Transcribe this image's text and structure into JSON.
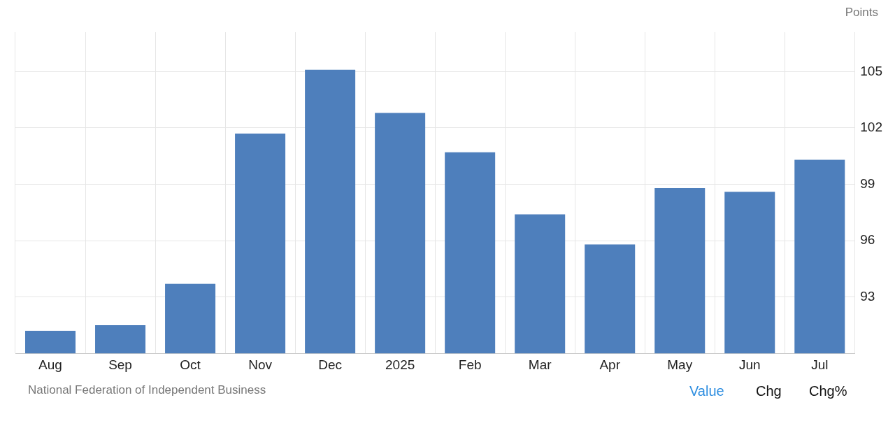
{
  "chart_data": {
    "type": "bar",
    "ylabel": "Points",
    "categories": [
      "Aug",
      "Sep",
      "Oct",
      "Nov",
      "Dec",
      "2025",
      "Feb",
      "Mar",
      "Apr",
      "May",
      "Jun",
      "Jul"
    ],
    "values": [
      91.2,
      91.5,
      93.7,
      101.7,
      105.1,
      102.8,
      100.7,
      97.4,
      95.8,
      98.8,
      98.6,
      100.3
    ],
    "color": "#4e7fbc",
    "ylim": [
      90,
      107.1
    ],
    "yticks": [
      93,
      96,
      99,
      102,
      105
    ],
    "grid": true,
    "legend": false,
    "annotations": [
      "National Federation of Independent Business",
      "Value",
      "Chg",
      "Chg%"
    ]
  }
}
